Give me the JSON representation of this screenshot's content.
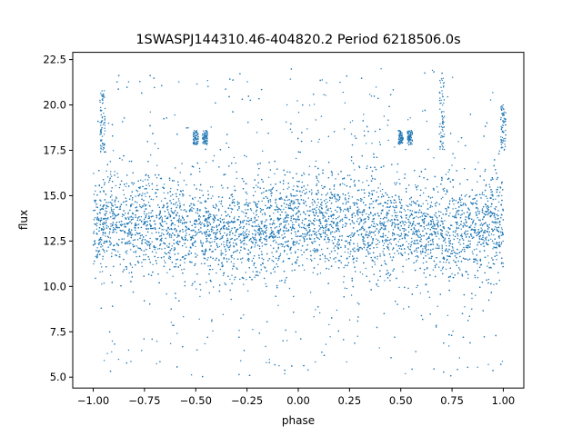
{
  "chart_data": {
    "type": "scatter",
    "title": "1SWASPJ144310.46-404820.2 Period 6218506.0s",
    "xlabel": "phase",
    "ylabel": "flux",
    "xlim": [
      -1.1,
      1.1
    ],
    "ylim": [
      4.4,
      22.9
    ],
    "x_ticks": [
      -1.0,
      -0.75,
      -0.5,
      -0.25,
      0.0,
      0.25,
      0.5,
      0.75,
      1.0
    ],
    "x_tick_labels": [
      "−1.00",
      "−0.75",
      "−0.50",
      "−0.25",
      "0.00",
      "0.25",
      "0.50",
      "0.75",
      "1.00"
    ],
    "y_ticks": [
      5.0,
      7.5,
      10.0,
      12.5,
      15.0,
      17.5,
      20.0,
      22.5
    ],
    "y_tick_labels": [
      "5.0",
      "7.5",
      "10.0",
      "12.5",
      "15.0",
      "17.5",
      "20.0",
      "22.5"
    ],
    "grid": false,
    "marker_color": "#1f77b4",
    "series": [
      {
        "phase_range": [
          -1.0,
          1.0
        ],
        "flux_band_center": 13.3,
        "flux_band_low": 10.5,
        "flux_band_high": 16.5,
        "flux_min": 5.0,
        "flux_max": 22.0,
        "clusters": [
          {
            "phase": -0.955,
            "flux_range": [
              17.5,
              21.0
            ]
          },
          {
            "phase": -0.5,
            "flux_range": [
              17.8,
              18.6
            ]
          },
          {
            "phase": -0.455,
            "flux_range": [
              17.8,
              18.6
            ]
          },
          {
            "phase": 0.5,
            "flux_range": [
              17.8,
              18.6
            ]
          },
          {
            "phase": 0.545,
            "flux_range": [
              17.8,
              18.6
            ]
          },
          {
            "phase": 0.7,
            "flux_range": [
              17.5,
              21.5
            ]
          },
          {
            "phase": 1.0,
            "flux_range": [
              17.5,
              20.0
            ]
          }
        ]
      }
    ]
  }
}
